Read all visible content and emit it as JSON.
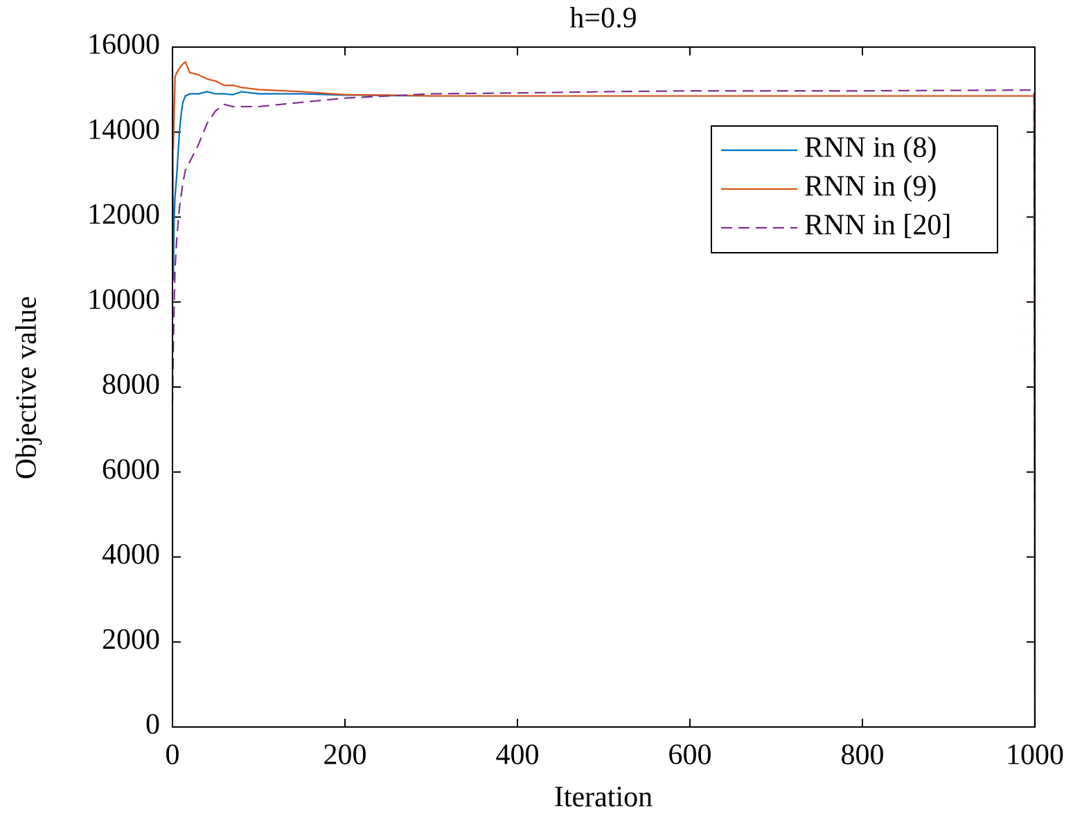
{
  "chart_data": {
    "type": "line",
    "title": "h=0.9",
    "x_label": "Iteration",
    "y_label": "Objective value",
    "x": [
      0,
      1,
      2,
      3,
      5,
      8,
      10,
      12,
      15,
      20,
      30,
      40,
      50,
      60,
      70,
      80,
      100,
      150,
      200,
      250,
      300,
      400,
      500,
      600,
      800,
      999,
      1000
    ],
    "series": [
      {
        "name": "RNN in (8)",
        "color": "#0072bd",
        "linestyle": "solid",
        "values": [
          15500,
          10500,
          12000,
          12500,
          13000,
          14000,
          14400,
          14700,
          14850,
          14900,
          14900,
          14950,
          14900,
          14900,
          14880,
          14950,
          14900,
          14900,
          14870,
          14860,
          14850,
          14850,
          14850,
          14850,
          14850,
          14850,
          0
        ]
      },
      {
        "name": "RNN in (9)",
        "color": "#d95319",
        "linestyle": "solid",
        "values": [
          14000,
          13600,
          14500,
          15300,
          15400,
          15500,
          15550,
          15600,
          15650,
          15400,
          15350,
          15250,
          15200,
          15100,
          15100,
          15050,
          15000,
          14950,
          14880,
          14870,
          14850,
          14850,
          14850,
          14850,
          14850,
          14850,
          0
        ]
      },
      {
        "name": "RNN in [20]",
        "color": "#7e2f8e",
        "linestyle": "dashed",
        "values": [
          7600,
          9000,
          10000,
          10800,
          11500,
          12200,
          12500,
          12800,
          13100,
          13300,
          13700,
          14200,
          14500,
          14650,
          14600,
          14600,
          14600,
          14700,
          14800,
          14850,
          14900,
          14920,
          14950,
          14970,
          14970,
          14990,
          0
        ]
      }
    ],
    "xlim": [
      0,
      1000
    ],
    "xticks": [
      0,
      200,
      400,
      600,
      800,
      1000
    ],
    "ylim": [
      0,
      16000
    ],
    "yticks": [
      0,
      2000,
      4000,
      6000,
      8000,
      10000,
      12000,
      14000,
      16000
    ],
    "legend": "upper right",
    "grid": false
  }
}
